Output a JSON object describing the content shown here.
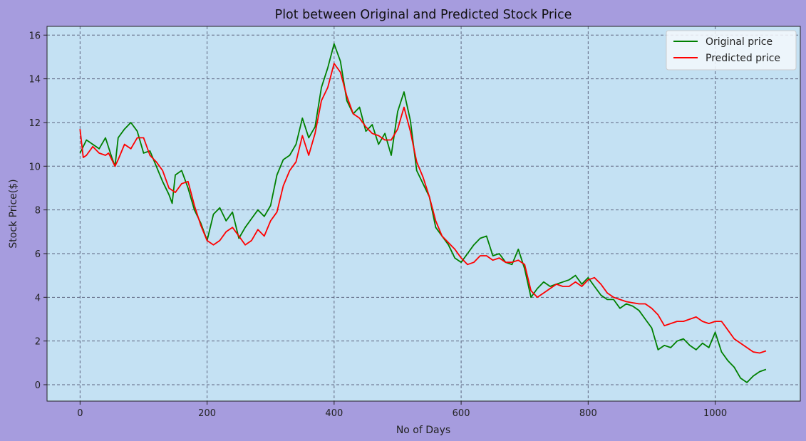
{
  "chart_data": {
    "type": "line",
    "title": "Plot between Original and Predicted Stock Price",
    "xlabel": "No of Days",
    "ylabel": "Stock Price($)",
    "xlim": [
      -52,
      1134
    ],
    "ylim": [
      -0.75,
      16.4
    ],
    "xticks": [
      0,
      200,
      400,
      600,
      800,
      1000
    ],
    "yticks": [
      0,
      2,
      4,
      6,
      8,
      10,
      12,
      14,
      16
    ],
    "grid": true,
    "legend_position": "upper right",
    "colors": {
      "figure_bg": "#a69cde",
      "plot_bg": "#c4e1f3",
      "grid": "#5e6580"
    },
    "series": [
      {
        "name": "Original price",
        "color": "#008000",
        "x": [
          0,
          10,
          20,
          30,
          40,
          50,
          55,
          60,
          70,
          80,
          90,
          100,
          110,
          120,
          130,
          140,
          145,
          150,
          160,
          170,
          180,
          190,
          200,
          210,
          220,
          230,
          240,
          250,
          260,
          270,
          280,
          290,
          300,
          310,
          320,
          330,
          340,
          350,
          360,
          370,
          380,
          390,
          400,
          410,
          420,
          430,
          440,
          450,
          460,
          470,
          480,
          490,
          500,
          510,
          520,
          530,
          540,
          550,
          560,
          570,
          580,
          590,
          600,
          610,
          620,
          630,
          640,
          650,
          660,
          670,
          680,
          690,
          700,
          710,
          720,
          730,
          740,
          750,
          760,
          770,
          780,
          790,
          800,
          810,
          820,
          830,
          840,
          850,
          860,
          870,
          880,
          890,
          900,
          910,
          920,
          930,
          940,
          950,
          960,
          970,
          980,
          990,
          1000,
          1010,
          1020,
          1030,
          1040,
          1050,
          1060,
          1070,
          1080
        ],
        "values": [
          10.6,
          11.2,
          11.0,
          10.8,
          11.3,
          10.4,
          10.0,
          11.3,
          11.7,
          12.0,
          11.6,
          10.6,
          10.7,
          10.0,
          9.3,
          8.7,
          8.3,
          9.6,
          9.8,
          9.0,
          8.0,
          7.4,
          6.6,
          7.8,
          8.1,
          7.5,
          7.9,
          6.7,
          7.2,
          7.6,
          8.0,
          7.7,
          8.2,
          9.6,
          10.3,
          10.5,
          11.0,
          12.2,
          11.3,
          11.8,
          13.6,
          14.5,
          15.6,
          14.8,
          13.0,
          12.4,
          12.7,
          11.6,
          11.9,
          11.0,
          11.5,
          10.5,
          12.5,
          13.4,
          12.1,
          9.8,
          9.2,
          8.6,
          7.2,
          6.8,
          6.4,
          5.8,
          5.6,
          6.0,
          6.4,
          6.7,
          6.8,
          5.9,
          6.0,
          5.6,
          5.5,
          6.2,
          5.3,
          4.0,
          4.4,
          4.7,
          4.5,
          4.6,
          4.7,
          4.8,
          5.0,
          4.6,
          4.9,
          4.5,
          4.1,
          3.9,
          3.9,
          3.5,
          3.7,
          3.6,
          3.4,
          3.0,
          2.6,
          1.6,
          1.8,
          1.7,
          2.0,
          2.1,
          1.8,
          1.6,
          1.9,
          1.7,
          2.4,
          1.5,
          1.1,
          0.8,
          0.3,
          0.1,
          0.4,
          0.6,
          0.7
        ]
      },
      {
        "name": "Predicted price",
        "color": "#ff0000",
        "x": [
          0,
          5,
          10,
          20,
          30,
          40,
          45,
          50,
          55,
          60,
          70,
          80,
          90,
          100,
          110,
          120,
          130,
          140,
          150,
          160,
          170,
          180,
          190,
          200,
          210,
          220,
          230,
          240,
          250,
          260,
          270,
          280,
          290,
          300,
          310,
          320,
          330,
          340,
          350,
          360,
          370,
          380,
          390,
          400,
          410,
          420,
          430,
          440,
          450,
          460,
          470,
          480,
          490,
          500,
          510,
          520,
          530,
          540,
          550,
          560,
          570,
          580,
          590,
          600,
          610,
          620,
          630,
          640,
          650,
          660,
          670,
          680,
          690,
          700,
          710,
          720,
          730,
          740,
          750,
          760,
          770,
          780,
          790,
          800,
          810,
          820,
          830,
          840,
          850,
          860,
          870,
          880,
          890,
          900,
          910,
          920,
          930,
          940,
          950,
          960,
          970,
          980,
          990,
          1000,
          1010,
          1020,
          1030,
          1040,
          1050,
          1060,
          1070,
          1080
        ],
        "values": [
          11.7,
          10.4,
          10.5,
          10.9,
          10.6,
          10.5,
          10.6,
          10.3,
          10.0,
          10.3,
          11.0,
          10.8,
          11.3,
          11.3,
          10.5,
          10.2,
          9.8,
          9.0,
          8.8,
          9.2,
          9.3,
          8.2,
          7.3,
          6.6,
          6.4,
          6.6,
          7.0,
          7.2,
          6.8,
          6.4,
          6.6,
          7.1,
          6.8,
          7.5,
          7.9,
          9.1,
          9.8,
          10.2,
          11.4,
          10.5,
          11.5,
          13.0,
          13.6,
          14.7,
          14.3,
          13.2,
          12.4,
          12.2,
          11.8,
          11.5,
          11.4,
          11.2,
          11.2,
          11.7,
          12.7,
          11.6,
          10.2,
          9.5,
          8.6,
          7.5,
          6.8,
          6.5,
          6.2,
          5.8,
          5.5,
          5.6,
          5.9,
          5.9,
          5.7,
          5.8,
          5.6,
          5.6,
          5.7,
          5.5,
          4.3,
          4.0,
          4.2,
          4.4,
          4.6,
          4.5,
          4.5,
          4.7,
          4.5,
          4.8,
          4.9,
          4.6,
          4.2,
          4.0,
          3.9,
          3.8,
          3.75,
          3.7,
          3.7,
          3.5,
          3.2,
          2.7,
          2.8,
          2.9,
          2.9,
          3.0,
          3.1,
          2.9,
          2.8,
          2.9,
          2.9,
          2.5,
          2.1,
          1.9,
          1.7,
          1.5,
          1.45,
          1.55
        ]
      }
    ]
  }
}
